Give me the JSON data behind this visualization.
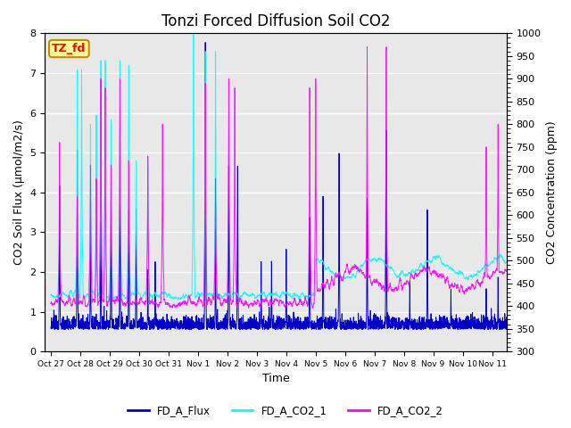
{
  "title": "Tonzi Forced Diffusion Soil CO2",
  "xlabel": "Time",
  "ylabel_left": "CO2 Soil Flux (μmol/m2/s)",
  "ylabel_right": "CO2 Concentration (ppm)",
  "ylim_left": [
    0.0,
    8.0
  ],
  "ylim_right": [
    300,
    1000
  ],
  "xtick_labels": [
    "Oct 27",
    "Oct 28",
    "Oct 29",
    "Oct 30",
    "Oct 31",
    "Nov 1",
    "Nov 2",
    "Nov 3",
    "Nov 4",
    "Nov 5",
    "Nov 6",
    "Nov 7",
    "Nov 8",
    "Nov 9",
    "Nov 10",
    "Nov 11"
  ],
  "color_flux": "#0000CD",
  "color_co2_1": "#00FFFF",
  "color_co2_2": "#FF00FF",
  "legend_labels": [
    "FD_A_Flux",
    "FD_A_CO2_1",
    "FD_A_CO2_2"
  ],
  "label_box_text": "TZ_fd",
  "label_box_facecolor": "#FFFF99",
  "label_box_edgecolor": "#CC8800",
  "plot_bg": "#E8E8E8",
  "grid_color": "#FFFFFF",
  "title_fontsize": 12,
  "label_fontsize": 9,
  "tick_fontsize": 8
}
